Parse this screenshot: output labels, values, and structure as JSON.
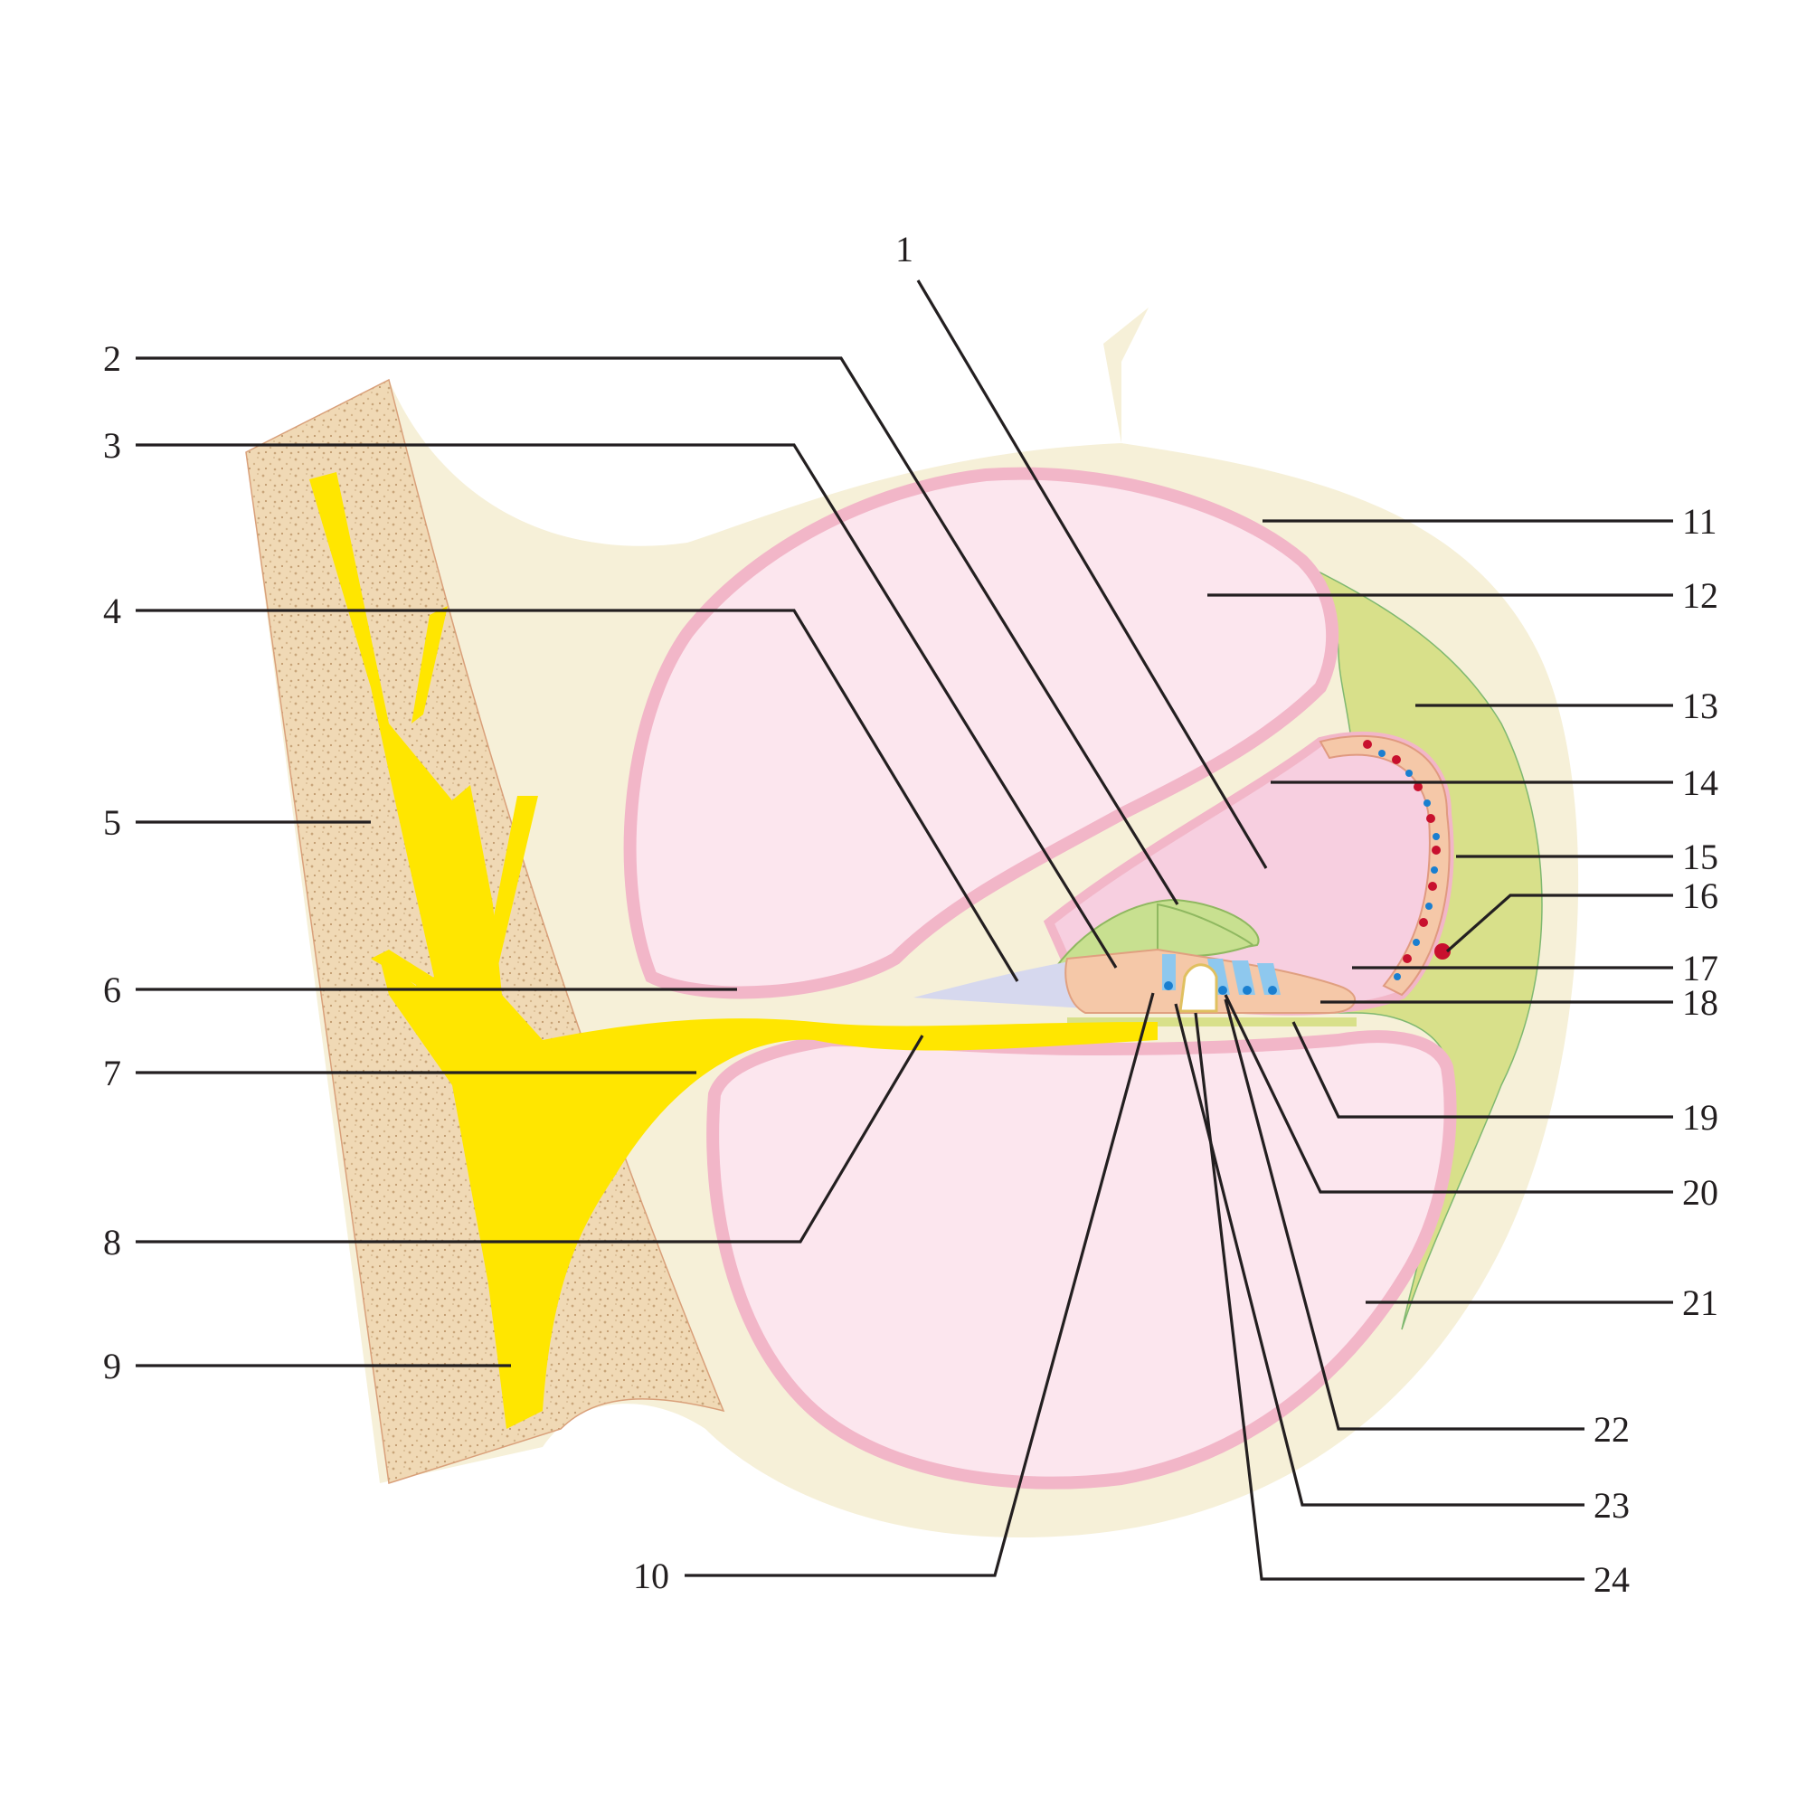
{
  "labels": {
    "l1": "1",
    "l2": "2",
    "l3": "3",
    "l4": "4",
    "l5": "5",
    "l6": "6",
    "l7": "7",
    "l8": "8",
    "l9": "9",
    "l10": "10",
    "l11": "11",
    "l12": "12",
    "l13": "13",
    "l14": "14",
    "l15": "15",
    "l16": "16",
    "l17": "17",
    "l18": "18",
    "l19": "19",
    "l20": "20",
    "l21": "21",
    "l22": "22",
    "l23": "23",
    "l24": "24"
  },
  "colors": {
    "background": "#ffffff",
    "outer_tissue": "#f6f0d8",
    "bone": "#f0d9b5",
    "bone_speckle": "#c8a57a",
    "nerve": "#ffe600",
    "scala_fill": "#fce6ee",
    "epithelium": "#f2b6c8",
    "epithelium_cell": "#fbd3df",
    "duct_fill": "#f7cfe0",
    "spiral_ligament": "#d8e08a",
    "limbus": "#c8e090",
    "stria_cells": "#f5c8a8",
    "hair_cells_blue": "#8ec8ee",
    "nucleus_blue": "#1a7fd0",
    "vessel_red": "#c8102e",
    "inner_sulcus": "#d6d8ee",
    "leader_line": "#231f20"
  }
}
